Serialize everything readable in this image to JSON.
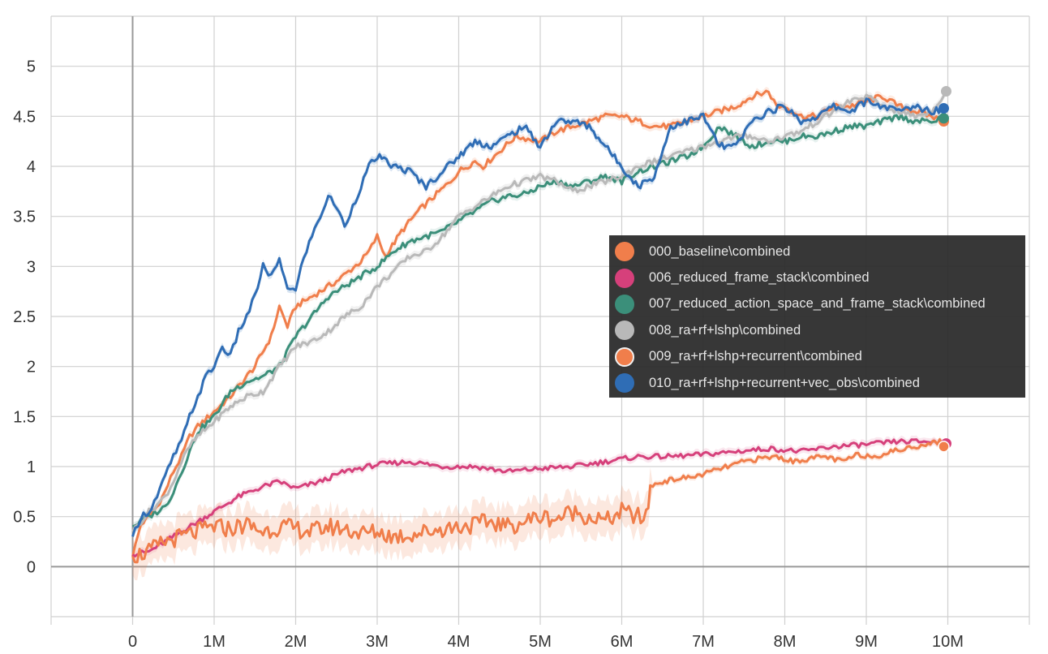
{
  "chart_data": {
    "type": "line",
    "title": "",
    "xlabel": "",
    "ylabel": "",
    "xlim": [
      -1000000,
      11000000
    ],
    "ylim": [
      -0.5,
      5.5
    ],
    "grid": true,
    "legend_position": "center-right",
    "x_ticks": [
      {
        "value": 0,
        "label": "0"
      },
      {
        "value": 1000000,
        "label": "1M"
      },
      {
        "value": 2000000,
        "label": "2M"
      },
      {
        "value": 3000000,
        "label": "3M"
      },
      {
        "value": 4000000,
        "label": "4M"
      },
      {
        "value": 5000000,
        "label": "5M"
      },
      {
        "value": 6000000,
        "label": "6M"
      },
      {
        "value": 7000000,
        "label": "7M"
      },
      {
        "value": 8000000,
        "label": "8M"
      },
      {
        "value": 9000000,
        "label": "9M"
      },
      {
        "value": 10000000,
        "label": "10M"
      }
    ],
    "y_ticks": [
      {
        "value": 0,
        "label": "0"
      },
      {
        "value": 0.5,
        "label": "0.5"
      },
      {
        "value": 1,
        "label": "1"
      },
      {
        "value": 1.5,
        "label": "1.5"
      },
      {
        "value": 2,
        "label": "2"
      },
      {
        "value": 2.5,
        "label": "2.5"
      },
      {
        "value": 3,
        "label": "3"
      },
      {
        "value": 3.5,
        "label": "3.5"
      },
      {
        "value": 4,
        "label": "4"
      },
      {
        "value": 4.5,
        "label": "4.5"
      },
      {
        "value": 5,
        "label": "5"
      }
    ],
    "series": [
      {
        "name": "000_baseline\\combined",
        "color": "#f07e4b",
        "x": [
          0,
          100000,
          200000,
          300000,
          400000,
          500000,
          600000,
          700000,
          800000,
          1000000,
          1200000,
          1500000,
          1700000,
          1800000,
          1900000,
          2000000,
          2200000,
          2500000,
          2800000,
          2900000,
          3000000,
          3100000,
          3300000,
          3500000,
          3700000,
          3900000,
          4000000,
          4200000,
          4300000,
          4500000,
          4700000,
          5000000,
          5200000,
          5400000,
          5600000,
          5800000,
          6000000,
          6200000,
          6400000,
          6600000,
          6800000,
          7000000,
          7200000,
          7400000,
          7600000,
          7800000,
          7900000,
          8000000,
          8200000,
          8400000,
          8600000,
          8800000,
          9000000,
          9200000,
          9400000,
          9600000,
          9800000,
          9950000
        ],
        "y": [
          0.1,
          0.42,
          0.5,
          0.6,
          0.75,
          0.95,
          1.1,
          1.3,
          1.4,
          1.55,
          1.7,
          2.0,
          2.3,
          2.6,
          2.4,
          2.6,
          2.7,
          2.85,
          3.05,
          3.15,
          3.3,
          3.1,
          3.35,
          3.55,
          3.7,
          3.85,
          3.95,
          4.05,
          4.0,
          4.15,
          4.3,
          4.25,
          4.35,
          4.4,
          4.45,
          4.5,
          4.5,
          4.45,
          4.4,
          4.4,
          4.45,
          4.5,
          4.55,
          4.6,
          4.7,
          4.75,
          4.6,
          4.6,
          4.5,
          4.5,
          4.6,
          4.6,
          4.65,
          4.7,
          4.6,
          4.55,
          4.5,
          4.45
        ]
      },
      {
        "name": "006_reduced_frame_stack\\combined",
        "color": "#d6407b",
        "x": [
          0,
          200000,
          400000,
          600000,
          800000,
          1000000,
          1300000,
          1600000,
          1800000,
          2000000,
          2300000,
          2600000,
          3000000,
          3400000,
          3800000,
          4200000,
          4600000,
          5000000,
          5400000,
          5800000,
          6200000,
          6600000,
          7000000,
          7400000,
          7800000,
          8200000,
          8600000,
          9000000,
          9400000,
          9800000,
          9980000
        ],
        "y": [
          0.12,
          0.15,
          0.25,
          0.35,
          0.45,
          0.55,
          0.7,
          0.8,
          0.85,
          0.78,
          0.85,
          0.95,
          1.02,
          1.05,
          1.0,
          1.0,
          0.95,
          0.98,
          1.0,
          1.05,
          1.1,
          1.1,
          1.12,
          1.15,
          1.18,
          1.15,
          1.2,
          1.22,
          1.25,
          1.25,
          1.23
        ]
      },
      {
        "name": "007_reduced_action_space_and_frame_stack\\combined",
        "color": "#3b8f7a",
        "x": [
          0,
          100000,
          200000,
          300000,
          400000,
          500000,
          600000,
          700000,
          800000,
          1000000,
          1200000,
          1400000,
          1600000,
          1800000,
          2000000,
          2200000,
          2400000,
          2600000,
          2800000,
          3000000,
          3200000,
          3400000,
          3600000,
          3800000,
          4000000,
          4200000,
          4400000,
          4600000,
          4800000,
          5000000,
          5200000,
          5400000,
          5600000,
          5800000,
          6000000,
          6200000,
          6400000,
          6600000,
          6800000,
          7000000,
          7200000,
          7400000,
          7600000,
          7800000,
          8000000,
          8200000,
          8400000,
          8600000,
          8800000,
          9000000,
          9200000,
          9400000,
          9600000,
          9800000,
          9950000
        ],
        "y": [
          0.4,
          0.45,
          0.5,
          0.55,
          0.6,
          0.75,
          0.95,
          1.15,
          1.35,
          1.5,
          1.75,
          1.85,
          1.9,
          2.0,
          2.3,
          2.5,
          2.7,
          2.8,
          2.9,
          3.0,
          3.15,
          3.25,
          3.3,
          3.35,
          3.45,
          3.55,
          3.65,
          3.7,
          3.72,
          3.8,
          3.85,
          3.8,
          3.85,
          3.9,
          3.85,
          3.95,
          4.0,
          4.05,
          4.1,
          4.2,
          4.4,
          4.3,
          4.2,
          4.25,
          4.25,
          4.3,
          4.3,
          4.35,
          4.4,
          4.4,
          4.45,
          4.5,
          4.45,
          4.45,
          4.48
        ]
      },
      {
        "name": "008_ra+rf+lshp\\combined",
        "color": "#b9b9b9",
        "x": [
          0,
          100000,
          200000,
          300000,
          400000,
          500000,
          600000,
          700000,
          800000,
          1000000,
          1200000,
          1400000,
          1600000,
          1800000,
          2000000,
          2200000,
          2400000,
          2600000,
          2800000,
          3000000,
          3200000,
          3400000,
          3600000,
          3800000,
          4000000,
          4200000,
          4400000,
          4600000,
          4800000,
          5000000,
          5200000,
          5400000,
          5600000,
          5800000,
          6000000,
          6200000,
          6400000,
          6600000,
          6800000,
          7000000,
          7200000,
          7400000,
          7600000,
          7800000,
          8000000,
          8200000,
          8400000,
          8600000,
          8800000,
          9000000,
          9200000,
          9400000,
          9600000,
          9800000,
          9980000
        ],
        "y": [
          0.35,
          0.45,
          0.55,
          0.62,
          0.7,
          0.85,
          1.05,
          1.2,
          1.3,
          1.45,
          1.6,
          1.7,
          1.75,
          2.0,
          2.2,
          2.25,
          2.35,
          2.5,
          2.6,
          2.8,
          2.95,
          3.1,
          3.15,
          3.3,
          3.5,
          3.6,
          3.7,
          3.8,
          3.85,
          3.9,
          3.85,
          3.75,
          3.8,
          3.85,
          3.9,
          4.0,
          4.05,
          4.1,
          4.15,
          4.2,
          4.25,
          4.3,
          4.3,
          4.25,
          4.3,
          4.35,
          4.45,
          4.55,
          4.65,
          4.7,
          4.6,
          4.55,
          4.5,
          4.55,
          4.75
        ]
      },
      {
        "name": "009_ra+rf+lshp+recurrent\\combined",
        "color": "#f07e4b",
        "x": [
          0,
          200000,
          400000,
          600000,
          800000,
          1000000,
          1200000,
          1400000,
          1600000,
          1800000,
          2000000,
          2200000,
          2400000,
          2600000,
          2800000,
          3000000,
          3200000,
          3400000,
          3600000,
          3800000,
          4000000,
          4200000,
          4400000,
          4600000,
          4800000,
          5000000,
          5200000,
          5400000,
          5600000,
          5800000,
          6000000,
          6200000,
          6300000,
          6350000,
          6500000,
          6700000,
          6900000,
          7100000,
          7300000,
          7500000,
          7700000,
          7900000,
          8100000,
          8300000,
          8500000,
          8700000,
          8900000,
          9100000,
          9300000,
          9500000,
          9700000,
          9900000,
          9950000
        ],
        "y": [
          0.1,
          0.15,
          0.25,
          0.3,
          0.35,
          0.4,
          0.38,
          0.42,
          0.35,
          0.4,
          0.38,
          0.35,
          0.4,
          0.38,
          0.33,
          0.35,
          0.3,
          0.32,
          0.35,
          0.38,
          0.4,
          0.42,
          0.45,
          0.4,
          0.45,
          0.5,
          0.48,
          0.55,
          0.5,
          0.45,
          0.55,
          0.5,
          0.48,
          0.8,
          0.85,
          0.88,
          0.9,
          0.95,
          1.0,
          1.05,
          1.08,
          1.1,
          1.05,
          1.08,
          1.1,
          1.05,
          1.12,
          1.1,
          1.15,
          1.18,
          1.22,
          1.25,
          1.2
        ]
      },
      {
        "name": "010_ra+rf+lshp+recurrent+vec_obs\\combined",
        "color": "#2f6db5",
        "x": [
          0,
          100000,
          200000,
          300000,
          400000,
          500000,
          600000,
          700000,
          800000,
          900000,
          1000000,
          1100000,
          1200000,
          1300000,
          1400000,
          1500000,
          1600000,
          1700000,
          1800000,
          1900000,
          2000000,
          2100000,
          2200000,
          2300000,
          2400000,
          2500000,
          2600000,
          2700000,
          2800000,
          2900000,
          3000000,
          3200000,
          3400000,
          3600000,
          3800000,
          4000000,
          4200000,
          4400000,
          4600000,
          4800000,
          5000000,
          5200000,
          5400000,
          5600000,
          5800000,
          6000000,
          6200000,
          6400000,
          6600000,
          6800000,
          7000000,
          7200000,
          7400000,
          7600000,
          7800000,
          8000000,
          8200000,
          8400000,
          8600000,
          8800000,
          9000000,
          9200000,
          9400000,
          9600000,
          9800000,
          9950000
        ],
        "y": [
          0.3,
          0.5,
          0.55,
          0.7,
          0.9,
          1.1,
          1.25,
          1.5,
          1.7,
          1.9,
          2.0,
          2.2,
          2.1,
          2.35,
          2.5,
          2.7,
          3.0,
          2.9,
          3.05,
          2.8,
          2.75,
          3.1,
          3.3,
          3.5,
          3.7,
          3.6,
          3.4,
          3.6,
          3.8,
          4.0,
          4.1,
          4.0,
          3.95,
          3.8,
          3.95,
          4.1,
          4.25,
          4.2,
          4.3,
          4.4,
          4.2,
          4.45,
          4.45,
          4.4,
          4.2,
          4.0,
          3.8,
          3.9,
          4.4,
          4.45,
          4.5,
          4.2,
          4.2,
          4.45,
          4.55,
          4.6,
          4.45,
          4.5,
          4.6,
          4.55,
          4.65,
          4.6,
          4.55,
          4.6,
          4.55,
          4.58
        ]
      }
    ]
  }
}
